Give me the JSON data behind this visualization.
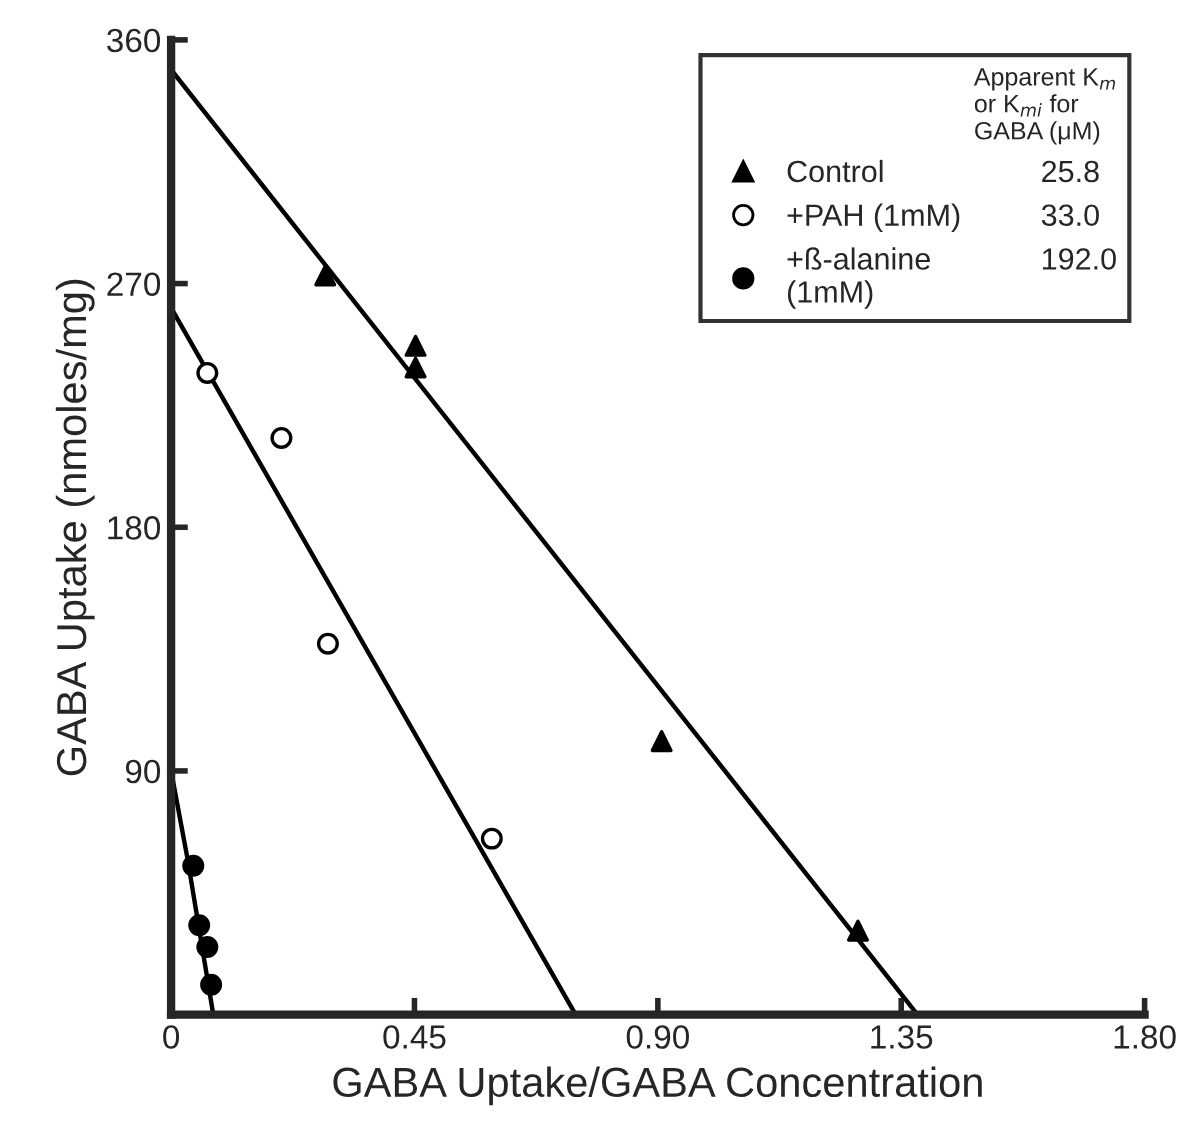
{
  "chart_data": {
    "type": "scatter",
    "xlabel": "GABA Uptake/GABA Concentration",
    "ylabel": "GABA Uptake (nmoles/mg)",
    "legend_title": "Apparent K$_{m}$\nor K$_{mi}$ for\nGABA (μM)",
    "annotations": [
      "25.8",
      "33.0",
      "192.0"
    ],
    "xlim": [
      0,
      1.8
    ],
    "xticks": [
      0,
      0.45,
      {
        "value": 0.9,
        "label": "0.90"
      },
      1.35,
      {
        "value": 1.8,
        "label": "1.80"
      }
    ],
    "ylim": [
      0,
      360
    ],
    "yticks": [
      90,
      180,
      270,
      360
    ],
    "grid": false,
    "legend": "top right",
    "series": [
      {
        "name": "Control",
        "marker": "triangle",
        "color": "#000000",
        "x": [
          0.285,
          0.452,
          0.452,
          0.907,
          1.27
        ],
        "values": [
          273,
          247,
          239,
          101,
          31
        ]
      },
      {
        "name": "+PAH (1mM)",
        "marker": "circle",
        "color": "#ffffff",
        "x": [
          0.067,
          0.204,
          0.29,
          0.593
        ],
        "values": [
          237,
          213,
          137,
          65
        ]
      },
      {
        "name": "+ß-alanine\n(1mM)",
        "marker": "circle",
        "color": "#000000",
        "x": [
          0.041,
          0.052,
          0.067,
          0.074
        ],
        "values": [
          55,
          33,
          25,
          11
        ]
      },
      {
        "type": "line",
        "color": "#000000",
        "x": [
          0,
          1.38
        ],
        "values": [
          349,
          0
        ]
      },
      {
        "type": "line",
        "color": "#000000",
        "x": [
          0,
          0.748
        ],
        "values": [
          261,
          0
        ]
      },
      {
        "type": "line",
        "color": "#000000",
        "x": [
          0,
          0.03,
          0.078
        ],
        "values": [
          90,
          58,
          0
        ]
      }
    ]
  }
}
